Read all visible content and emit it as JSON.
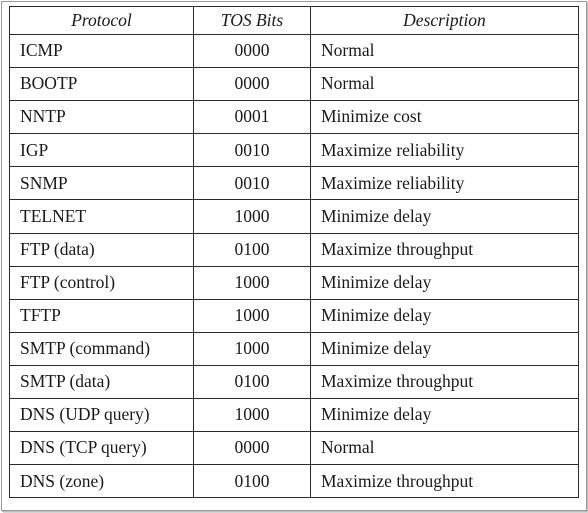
{
  "table": {
    "headers": [
      "Protocol",
      "TOS Bits",
      "Description"
    ],
    "rows": [
      [
        "ICMP",
        "0000",
        "Normal"
      ],
      [
        "BOOTP",
        "0000",
        "Normal"
      ],
      [
        "NNTP",
        "0001",
        "Minimize cost"
      ],
      [
        "IGP",
        "0010",
        "Maximize reliability"
      ],
      [
        "SNMP",
        "0010",
        "Maximize reliability"
      ],
      [
        "TELNET",
        "1000",
        "Minimize delay"
      ],
      [
        "FTP (data)",
        "0100",
        "Maximize throughput"
      ],
      [
        "FTP (control)",
        "1000",
        "Minimize delay"
      ],
      [
        "TFTP",
        "1000",
        "Minimize delay"
      ],
      [
        "SMTP (command)",
        "1000",
        "Minimize delay"
      ],
      [
        "SMTP (data)",
        "0100",
        "Maximize throughput"
      ],
      [
        "DNS (UDP query)",
        "1000",
        "Minimize delay"
      ],
      [
        "DNS (TCP query)",
        "0000",
        "Normal"
      ],
      [
        "DNS (zone)",
        "0100",
        "Maximize throughput"
      ]
    ]
  }
}
